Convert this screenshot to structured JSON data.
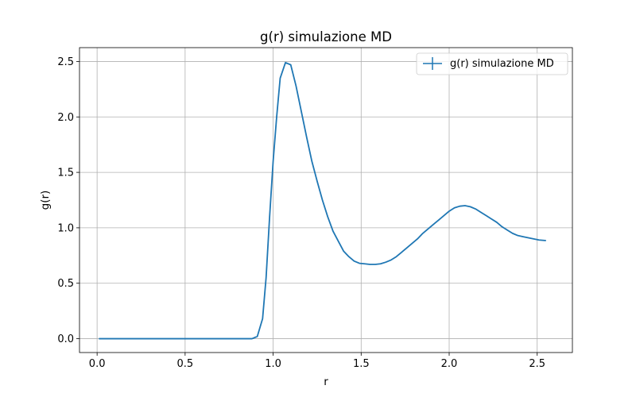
{
  "chart_data": {
    "type": "line",
    "title": "g(r) simulazione MD",
    "xlabel": "r",
    "ylabel": "g(r)",
    "xlim": [
      -0.1,
      2.7
    ],
    "ylim": [
      -0.125,
      2.625
    ],
    "xticks": [
      0.0,
      0.5,
      1.0,
      1.5,
      2.0,
      2.5
    ],
    "xtick_labels": [
      "0.0",
      "0.5",
      "1.0",
      "1.5",
      "2.0",
      "2.5"
    ],
    "yticks": [
      0.0,
      0.5,
      1.0,
      1.5,
      2.0,
      2.5
    ],
    "ytick_labels": [
      "0.0",
      "0.5",
      "1.0",
      "1.5",
      "2.0",
      "2.5"
    ],
    "grid": true,
    "legend_position": "top-right",
    "series": [
      {
        "name": "g(r) simulazione MD",
        "color": "#1f77b4",
        "x": [
          0.01,
          0.2,
          0.4,
          0.6,
          0.8,
          0.88,
          0.91,
          0.94,
          0.96,
          0.98,
          1.0,
          1.02,
          1.04,
          1.07,
          1.1,
          1.13,
          1.16,
          1.19,
          1.22,
          1.25,
          1.28,
          1.31,
          1.34,
          1.37,
          1.4,
          1.43,
          1.46,
          1.49,
          1.52,
          1.55,
          1.58,
          1.61,
          1.64,
          1.67,
          1.7,
          1.73,
          1.76,
          1.79,
          1.82,
          1.85,
          1.88,
          1.91,
          1.94,
          1.97,
          2.0,
          2.03,
          2.06,
          2.09,
          2.12,
          2.15,
          2.18,
          2.21,
          2.24,
          2.27,
          2.3,
          2.33,
          2.36,
          2.39,
          2.42,
          2.45,
          2.48,
          2.51,
          2.55
        ],
        "y": [
          0.0,
          0.0,
          0.0,
          0.0,
          0.0,
          0.0,
          0.02,
          0.18,
          0.55,
          1.1,
          1.6,
          2.0,
          2.35,
          2.49,
          2.47,
          2.28,
          2.05,
          1.82,
          1.6,
          1.42,
          1.25,
          1.1,
          0.97,
          0.88,
          0.79,
          0.74,
          0.7,
          0.68,
          0.675,
          0.67,
          0.67,
          0.675,
          0.69,
          0.71,
          0.74,
          0.78,
          0.82,
          0.86,
          0.9,
          0.95,
          0.99,
          1.03,
          1.07,
          1.11,
          1.15,
          1.18,
          1.195,
          1.2,
          1.19,
          1.17,
          1.14,
          1.11,
          1.08,
          1.05,
          1.01,
          0.98,
          0.95,
          0.93,
          0.92,
          0.91,
          0.9,
          0.89,
          0.885
        ]
      }
    ]
  }
}
